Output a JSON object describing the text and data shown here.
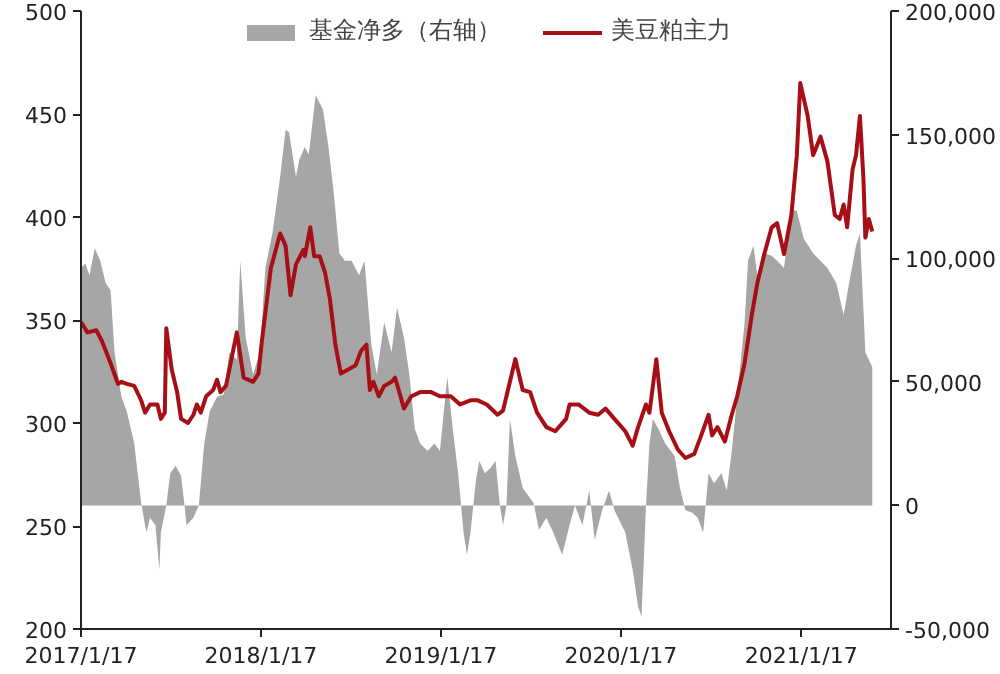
{
  "chart_data": {
    "type": "line",
    "legend": "top",
    "xlim": [
      "2017-01-17",
      "2021-07-18"
    ],
    "xticks": [
      {
        "value": "2017-01-17",
        "label": "2017/1/17"
      },
      {
        "value": "2018-01-17",
        "label": "2018/1/17"
      },
      {
        "value": "2019-01-17",
        "label": "2019/1/17"
      },
      {
        "value": "2020-01-17",
        "label": "2020/1/17"
      },
      {
        "value": "2021-01-17",
        "label": "2021/1/17"
      }
    ],
    "ylim": [
      200,
      500
    ],
    "yticks": [
      200,
      250,
      300,
      350,
      400,
      450,
      500
    ],
    "y2lim": [
      -50000,
      200000
    ],
    "y2ticks": [
      {
        "value": -50000,
        "label": "-50,000"
      },
      {
        "value": 0,
        "label": "0"
      },
      {
        "value": 50000,
        "label": "50,000"
      },
      {
        "value": 100000,
        "label": "100,000"
      },
      {
        "value": 150000,
        "label": "150,000"
      },
      {
        "value": 200000,
        "label": "200,000"
      }
    ],
    "series": [
      {
        "name": "基金净多（右轴）",
        "type": "area",
        "axis": "y2",
        "color": "#a6a6a6",
        "x": [
          "2017-01-17",
          "2017-01-26",
          "2017-02-03",
          "2017-02-14",
          "2017-02-25",
          "2017-03-08",
          "2017-03-18",
          "2017-03-26",
          "2017-04-09",
          "2017-04-20",
          "2017-05-05",
          "2017-05-19",
          "2017-05-27",
          "2017-05-30",
          "2017-06-06",
          "2017-06-17",
          "2017-06-25",
          "2017-06-28",
          "2017-07-09",
          "2017-07-17",
          "2017-07-28",
          "2017-08-08",
          "2017-08-15",
          "2017-08-19",
          "2017-09-02",
          "2017-09-13",
          "2017-09-24",
          "2017-10-05",
          "2017-10-20",
          "2017-11-03",
          "2017-11-14",
          "2017-11-29",
          "2017-12-06",
          "2017-12-17",
          "2018-01-01",
          "2018-01-15",
          "2018-01-26",
          "2018-02-10",
          "2018-02-25",
          "2018-03-08",
          "2018-03-15",
          "2018-03-29",
          "2018-04-05",
          "2018-04-16",
          "2018-04-24",
          "2018-05-08",
          "2018-05-23",
          "2018-06-03",
          "2018-06-14",
          "2018-06-25",
          "2018-07-06",
          "2018-07-20",
          "2018-08-04",
          "2018-08-15",
          "2018-08-29",
          "2018-09-09",
          "2018-09-24",
          "2018-10-09",
          "2018-10-20",
          "2018-10-27",
          "2018-11-03",
          "2018-11-14",
          "2018-11-25",
          "2018-12-06",
          "2018-12-21",
          "2019-01-04",
          "2019-01-15",
          "2019-01-30",
          "2019-02-10",
          "2019-02-21",
          "2019-03-04",
          "2019-03-11",
          "2019-03-18",
          "2019-03-29",
          "2019-04-05",
          "2019-04-16",
          "2019-04-27",
          "2019-05-08",
          "2019-05-16",
          "2019-05-23",
          "2019-05-30",
          "2019-06-06",
          "2019-06-17",
          "2019-07-02",
          "2019-07-24",
          "2019-08-04",
          "2019-08-19",
          "2019-09-02",
          "2019-09-20",
          "2019-10-05",
          "2019-10-16",
          "2019-10-31",
          "2019-11-14",
          "2019-11-25",
          "2019-12-10",
          "2019-12-24",
          "2020-01-04",
          "2020-01-26",
          "2020-02-10",
          "2020-02-21",
          "2020-02-28",
          "2020-03-08",
          "2020-03-15",
          "2020-03-22",
          "2020-04-02",
          "2020-04-16",
          "2020-05-05",
          "2020-05-16",
          "2020-05-27",
          "2020-06-10",
          "2020-06-21",
          "2020-07-02",
          "2020-07-13",
          "2020-07-24",
          "2020-08-08",
          "2020-08-19",
          "2020-08-29",
          "2020-09-09",
          "2020-09-24",
          "2020-10-01",
          "2020-10-12",
          "2020-10-20",
          "2020-11-03",
          "2020-11-18",
          "2020-11-29",
          "2020-12-13",
          "2020-12-28",
          "2021-01-08",
          "2021-01-22",
          "2021-02-10",
          "2021-03-11",
          "2021-03-29",
          "2021-04-13",
          "2021-04-24",
          "2021-05-08",
          "2021-05-16",
          "2021-05-27",
          "2021-06-10"
        ],
        "values": [
          96000,
          98000,
          93000,
          104000,
          99000,
          90000,
          87000,
          62000,
          44000,
          38000,
          25000,
          1000,
          -8000,
          -11000,
          -5000,
          -8000,
          -26000,
          -11000,
          0,
          13000,
          16000,
          12000,
          0,
          -8000,
          -5000,
          0,
          25000,
          38000,
          44000,
          45000,
          62000,
          59000,
          99000,
          68000,
          53000,
          62000,
          96000,
          111000,
          133000,
          152000,
          151000,
          133000,
          140000,
          145000,
          142000,
          166000,
          160000,
          145000,
          126000,
          102000,
          99000,
          99000,
          93000,
          99000,
          65000,
          53000,
          74000,
          62000,
          80000,
          74000,
          68000,
          53000,
          31000,
          25000,
          22000,
          25000,
          22000,
          52000,
          31000,
          13000,
          -11000,
          -20000,
          -11000,
          10000,
          18000,
          13000,
          15000,
          18000,
          1000,
          -8000,
          0,
          35000,
          20000,
          7000,
          1000,
          -10000,
          -5000,
          -11000,
          -20000,
          -8000,
          0,
          -8000,
          6000,
          -14000,
          -2000,
          6000,
          -2000,
          -11000,
          -26000,
          -41000,
          -45000,
          0,
          25000,
          35000,
          31000,
          25000,
          20000,
          7000,
          -2000,
          -3000,
          -5000,
          -11000,
          13000,
          9000,
          13000,
          6000,
          22000,
          44000,
          74000,
          99000,
          105000,
          93000,
          102000,
          101000,
          99000,
          96000,
          120000,
          119000,
          108000,
          102000,
          96000,
          90000,
          77000,
          90000,
          105000,
          110000,
          62000,
          56000
        ]
      },
      {
        "name": "美豆粕主力",
        "color": "#a50f15",
        "x": [
          "2017-01-17",
          "2017-01-30",
          "2017-02-17",
          "2017-02-28",
          "2017-03-18",
          "2017-04-02",
          "2017-04-09",
          "2017-04-20",
          "2017-05-05",
          "2017-05-19",
          "2017-05-27",
          "2017-06-06",
          "2017-06-21",
          "2017-06-28",
          "2017-07-06",
          "2017-07-09",
          "2017-07-20",
          "2017-07-31",
          "2017-08-08",
          "2017-08-22",
          "2017-09-02",
          "2017-09-09",
          "2017-09-17",
          "2017-09-28",
          "2017-10-12",
          "2017-10-20",
          "2017-10-27",
          "2017-11-07",
          "2017-11-14",
          "2017-11-29",
          "2017-12-13",
          "2018-01-01",
          "2018-01-12",
          "2018-01-19",
          "2018-02-06",
          "2018-02-25",
          "2018-03-08",
          "2018-03-18",
          "2018-03-29",
          "2018-04-13",
          "2018-04-16",
          "2018-04-27",
          "2018-05-05",
          "2018-05-16",
          "2018-05-27",
          "2018-06-06",
          "2018-06-17",
          "2018-06-28",
          "2018-07-13",
          "2018-07-28",
          "2018-08-08",
          "2018-08-19",
          "2018-08-26",
          "2018-09-02",
          "2018-09-13",
          "2018-09-24",
          "2018-10-09",
          "2018-10-16",
          "2018-10-27",
          "2018-11-03",
          "2018-11-18",
          "2018-12-06",
          "2018-12-28",
          "2019-01-15",
          "2019-02-06",
          "2019-02-25",
          "2019-03-18",
          "2019-04-02",
          "2019-04-20",
          "2019-05-12",
          "2019-05-23",
          "2019-06-06",
          "2019-06-17",
          "2019-07-02",
          "2019-07-17",
          "2019-07-31",
          "2019-08-19",
          "2019-09-06",
          "2019-09-28",
          "2019-10-05",
          "2019-10-23",
          "2019-11-14",
          "2019-12-02",
          "2019-12-17",
          "2020-01-04",
          "2020-01-26",
          "2020-02-10",
          "2020-02-21",
          "2020-03-08",
          "2020-03-15",
          "2020-03-29",
          "2020-04-09",
          "2020-04-24",
          "2020-05-12",
          "2020-05-27",
          "2020-06-14",
          "2020-06-28",
          "2020-07-13",
          "2020-07-20",
          "2020-07-31",
          "2020-08-15",
          "2020-08-29",
          "2020-09-09",
          "2020-09-24",
          "2020-10-09",
          "2020-10-20",
          "2020-11-03",
          "2020-11-18",
          "2020-11-29",
          "2020-12-13",
          "2020-12-28",
          "2021-01-08",
          "2021-01-15",
          "2021-01-30",
          "2021-02-10",
          "2021-02-25",
          "2021-03-11",
          "2021-03-26",
          "2021-04-05",
          "2021-04-13",
          "2021-04-20",
          "2021-05-01",
          "2021-05-08",
          "2021-05-16",
          "2021-05-23",
          "2021-05-27",
          "2021-06-03",
          "2021-06-10"
        ],
        "values": [
          349,
          344,
          345,
          340,
          329,
          319,
          320,
          319,
          318,
          311,
          305,
          309,
          309,
          302,
          305,
          346,
          326,
          315,
          302,
          300,
          304,
          309,
          305,
          313,
          316,
          321,
          315,
          318,
          326,
          344,
          322,
          320,
          324,
          340,
          375,
          392,
          386,
          362,
          377,
          384,
          381,
          395,
          381,
          381,
          373,
          360,
          338,
          324,
          326,
          328,
          335,
          338,
          316,
          320,
          313,
          318,
          320,
          322,
          313,
          307,
          313,
          315,
          315,
          313,
          313,
          309,
          311,
          311,
          309,
          304,
          306,
          320,
          331,
          316,
          315,
          305,
          298,
          296,
          302,
          309,
          309,
          305,
          304,
          307,
          302,
          296,
          289,
          298,
          309,
          305,
          331,
          305,
          296,
          287,
          283,
          285,
          294,
          304,
          294,
          298,
          291,
          304,
          313,
          329,
          353,
          368,
          382,
          395,
          397,
          382,
          401,
          430,
          465,
          449,
          430,
          439,
          427,
          401,
          399,
          406,
          395,
          423,
          430,
          449,
          419,
          390,
          399,
          393
        ]
      }
    ]
  }
}
